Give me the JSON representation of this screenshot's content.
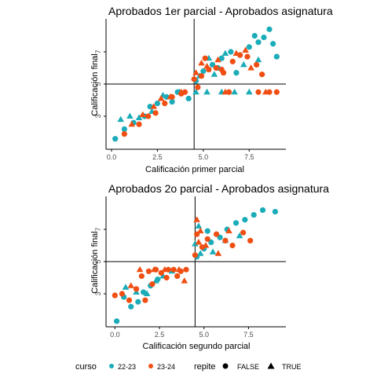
{
  "chart_data": [
    {
      "type": "scatter",
      "title": "Aprobados 1er parcial - Aprobados asignatura",
      "xlabel": "Calificación primer parcial",
      "ylabel": "Calificación final",
      "xlim": [
        -0.3,
        9.5
      ],
      "ylim": [
        0.95,
        9.05
      ],
      "x_ticks": [
        0.0,
        2.5,
        5.0,
        7.5
      ],
      "x_tick_labels": [
        "0.0",
        "2.5",
        "5.0",
        "7.5"
      ],
      "y_ticks": [
        3,
        5,
        7
      ],
      "y_tick_labels": [
        "3",
        "5",
        "7"
      ],
      "reference_lines": {
        "vline_x": 4.5,
        "hline_y": 5
      },
      "grid": false,
      "series": [
        {
          "curso": "22-23",
          "repite": "FALSE",
          "points": [
            [
              0.2,
              1.6
            ],
            [
              0.7,
              2.2
            ],
            [
              1.2,
              2.6
            ],
            [
              1.8,
              3.0
            ],
            [
              2.1,
              3.6
            ],
            [
              2.5,
              3.8
            ],
            [
              3.0,
              4.2
            ],
            [
              3.3,
              3.9
            ],
            [
              3.6,
              4.5
            ],
            [
              4.2,
              4.1
            ],
            [
              4.6,
              5.2
            ],
            [
              5.0,
              5.8
            ],
            [
              5.5,
              6.2
            ],
            [
              6.0,
              6.6
            ],
            [
              6.5,
              7.0
            ],
            [
              7.0,
              6.8
            ],
            [
              7.5,
              7.3
            ],
            [
              8.0,
              7.6
            ],
            [
              8.3,
              7.9
            ],
            [
              8.8,
              7.5
            ],
            [
              9.0,
              6.7
            ],
            [
              5.8,
              6.0
            ],
            [
              6.8,
              5.7
            ],
            [
              7.8,
              8.0
            ],
            [
              8.6,
              8.4
            ]
          ]
        },
        {
          "curso": "22-23",
          "repite": "TRUE",
          "points": [
            [
              0.5,
              2.8
            ],
            [
              1.0,
              3.0
            ],
            [
              1.5,
              2.9
            ],
            [
              2.2,
              3.3
            ],
            [
              2.8,
              4.3
            ],
            [
              3.7,
              4.5
            ],
            [
              4.6,
              4.5
            ],
            [
              5.2,
              4.5
            ],
            [
              6.0,
              4.5
            ],
            [
              6.7,
              4.5
            ],
            [
              7.5,
              4.5
            ],
            [
              5.3,
              6.6
            ],
            [
              6.2,
              6.9
            ],
            [
              4.8,
              5.5
            ],
            [
              5.6,
              5.6
            ],
            [
              7.2,
              6.2
            ],
            [
              8.0,
              6.5
            ]
          ]
        },
        {
          "curso": "23-24",
          "repite": "FALSE",
          "points": [
            [
              0.7,
              1.9
            ],
            [
              1.5,
              2.5
            ],
            [
              2.0,
              3.0
            ],
            [
              2.4,
              3.2
            ],
            [
              2.9,
              3.8
            ],
            [
              3.3,
              4.2
            ],
            [
              3.8,
              4.4
            ],
            [
              4.0,
              4.5
            ],
            [
              4.5,
              5.3
            ],
            [
              4.9,
              5.5
            ],
            [
              5.3,
              5.9
            ],
            [
              5.7,
              6.0
            ],
            [
              6.1,
              5.7
            ],
            [
              6.6,
              6.4
            ],
            [
              7.0,
              6.8
            ],
            [
              7.4,
              6.7
            ],
            [
              7.9,
              6.2
            ],
            [
              8.2,
              5.6
            ],
            [
              5.1,
              6.6
            ],
            [
              6.4,
              4.5
            ],
            [
              8.0,
              4.5
            ],
            [
              8.6,
              4.5
            ],
            [
              9.0,
              4.5
            ],
            [
              4.7,
              4.8
            ],
            [
              6.0,
              5.9
            ]
          ]
        },
        {
          "curso": "23-24",
          "repite": "TRUE",
          "points": [
            [
              1.1,
              2.5
            ],
            [
              1.7,
              3.1
            ],
            [
              2.3,
              3.6
            ],
            [
              2.7,
              4.1
            ],
            [
              3.2,
              4.2
            ],
            [
              3.8,
              4.5
            ],
            [
              4.6,
              5.7
            ],
            [
              5.2,
              6.1
            ],
            [
              5.8,
              6.5
            ],
            [
              6.2,
              4.5
            ],
            [
              6.8,
              6.9
            ],
            [
              7.3,
              7.1
            ],
            [
              8.4,
              4.5
            ],
            [
              4.9,
              6.3
            ],
            [
              7.6,
              6.0
            ]
          ]
        }
      ]
    },
    {
      "type": "scatter",
      "title": "Aprobados 2o parcial - Aprobados asignatura",
      "xlabel": "Calificación segundo parcial",
      "ylabel": "Calificación final",
      "xlim": [
        -0.5,
        9.6
      ],
      "ylim": [
        0.95,
        9.05
      ],
      "x_ticks": [
        0.0,
        2.5,
        5.0,
        7.5
      ],
      "x_tick_labels": [
        "0.0",
        "2.5",
        "5.0",
        "7.5"
      ],
      "y_ticks": [
        3,
        5,
        7
      ],
      "y_tick_labels": [
        "3",
        "5",
        "7"
      ],
      "reference_lines": {
        "vline_x": 4.5,
        "hline_y": 5
      },
      "grid": false,
      "series": [
        {
          "curso": "22-23",
          "repite": "FALSE",
          "points": [
            [
              0.1,
              1.3
            ],
            [
              0.5,
              2.8
            ],
            [
              0.9,
              2.2
            ],
            [
              1.3,
              2.5
            ],
            [
              1.6,
              3.1
            ],
            [
              2.0,
              3.5
            ],
            [
              2.4,
              3.9
            ],
            [
              4.6,
              5.3
            ],
            [
              5.0,
              5.8
            ],
            [
              5.4,
              6.2
            ],
            [
              5.9,
              6.5
            ],
            [
              6.3,
              7.0
            ],
            [
              6.8,
              7.4
            ],
            [
              7.3,
              7.6
            ],
            [
              7.8,
              7.9
            ],
            [
              8.3,
              8.2
            ],
            [
              9.0,
              8.1
            ],
            [
              5.2,
              6.9
            ]
          ]
        },
        {
          "curso": "22-23",
          "repite": "TRUE",
          "points": [
            [
              0.6,
              3.4
            ],
            [
              1.2,
              3.1
            ],
            [
              1.8,
              3.0
            ],
            [
              2.3,
              3.8
            ],
            [
              2.7,
              4.1
            ],
            [
              3.2,
              4.4
            ],
            [
              4.5,
              6.1
            ],
            [
              4.8,
              5.5
            ],
            [
              5.5,
              5.6
            ],
            [
              6.2,
              6.3
            ],
            [
              7.0,
              6.6
            ],
            [
              4.7,
              7.2
            ]
          ]
        },
        {
          "curso": "23-24",
          "repite": "FALSE",
          "points": [
            [
              0.0,
              2.9
            ],
            [
              0.4,
              3.0
            ],
            [
              0.8,
              2.6
            ],
            [
              1.2,
              3.3
            ],
            [
              1.5,
              4.1
            ],
            [
              1.9,
              4.4
            ],
            [
              2.3,
              4.5
            ],
            [
              2.6,
              4.3
            ],
            [
              3.0,
              4.5
            ],
            [
              3.3,
              4.5
            ],
            [
              3.7,
              4.4
            ],
            [
              4.0,
              4.5
            ],
            [
              1.7,
              2.6
            ],
            [
              2.1,
              3.6
            ],
            [
              2.9,
              4.0
            ],
            [
              3.5,
              4.1
            ],
            [
              4.5,
              5.4
            ],
            [
              4.9,
              5.9
            ],
            [
              5.2,
              6.4
            ],
            [
              5.7,
              6.7
            ],
            [
              6.2,
              6.3
            ],
            [
              6.6,
              6.0
            ],
            [
              7.2,
              6.8
            ],
            [
              7.6,
              6.3
            ],
            [
              4.6,
              6.7
            ]
          ]
        },
        {
          "curso": "23-24",
          "repite": "TRUE",
          "points": [
            [
              0.9,
              3.5
            ],
            [
              1.4,
              4.5
            ],
            [
              2.2,
              4.5
            ],
            [
              2.8,
              4.5
            ],
            [
              3.6,
              4.5
            ],
            [
              3.9,
              3.8
            ],
            [
              4.6,
              7.6
            ],
            [
              4.8,
              6.9
            ],
            [
              5.1,
              6.0
            ],
            [
              5.8,
              5.5
            ],
            [
              6.4,
              6.9
            ],
            [
              4.7,
              6.2
            ]
          ]
        }
      ]
    }
  ],
  "legend": {
    "curso_title": "curso",
    "curso_22_label": "22-23",
    "curso_23_label": "23-24",
    "repite_title": "repite",
    "repite_false_label": "FALSE",
    "repite_true_label": "TRUE",
    "placement": "bottom"
  },
  "colors": {
    "curso_22-23": "#1AACB8",
    "curso_23-24": "#F04E12",
    "axis": "#000000",
    "tick_label": "#4D4D4D"
  }
}
